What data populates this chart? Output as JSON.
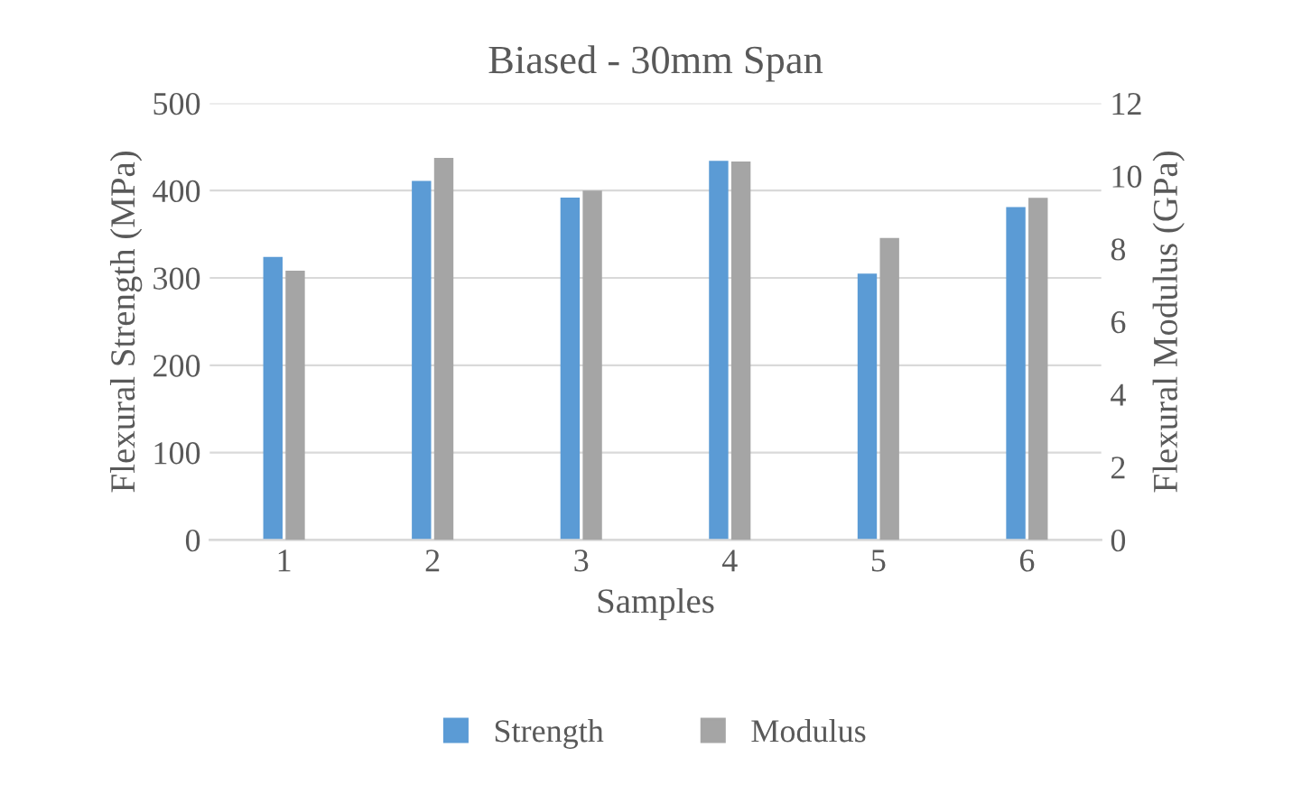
{
  "chart_data": {
    "type": "bar",
    "title": "Biased - 30mm Span",
    "xlabel": "Samples",
    "ylabel": "Flexural Strength (MPa)",
    "y2label": "Flexural Modulus (GPa)",
    "categories": [
      "1",
      "2",
      "3",
      "4",
      "5",
      "6"
    ],
    "series": [
      {
        "name": "Strength",
        "color": "#5b9bd5",
        "values": [
          324,
          411,
          392,
          434,
          305,
          381
        ]
      },
      {
        "name": "Modulus",
        "color": "#a5a5a5",
        "axis": "y2",
        "values": [
          7.4,
          10.5,
          9.6,
          10.4,
          8.3,
          9.4
        ]
      }
    ],
    "ylim": [
      0,
      500
    ],
    "yticks": [
      0,
      100,
      200,
      300,
      400,
      500
    ],
    "y2lim": [
      0,
      12
    ],
    "y2ticks": [
      0,
      2,
      4,
      6,
      8,
      10,
      12
    ],
    "grid": "y",
    "legend": "bottom"
  }
}
